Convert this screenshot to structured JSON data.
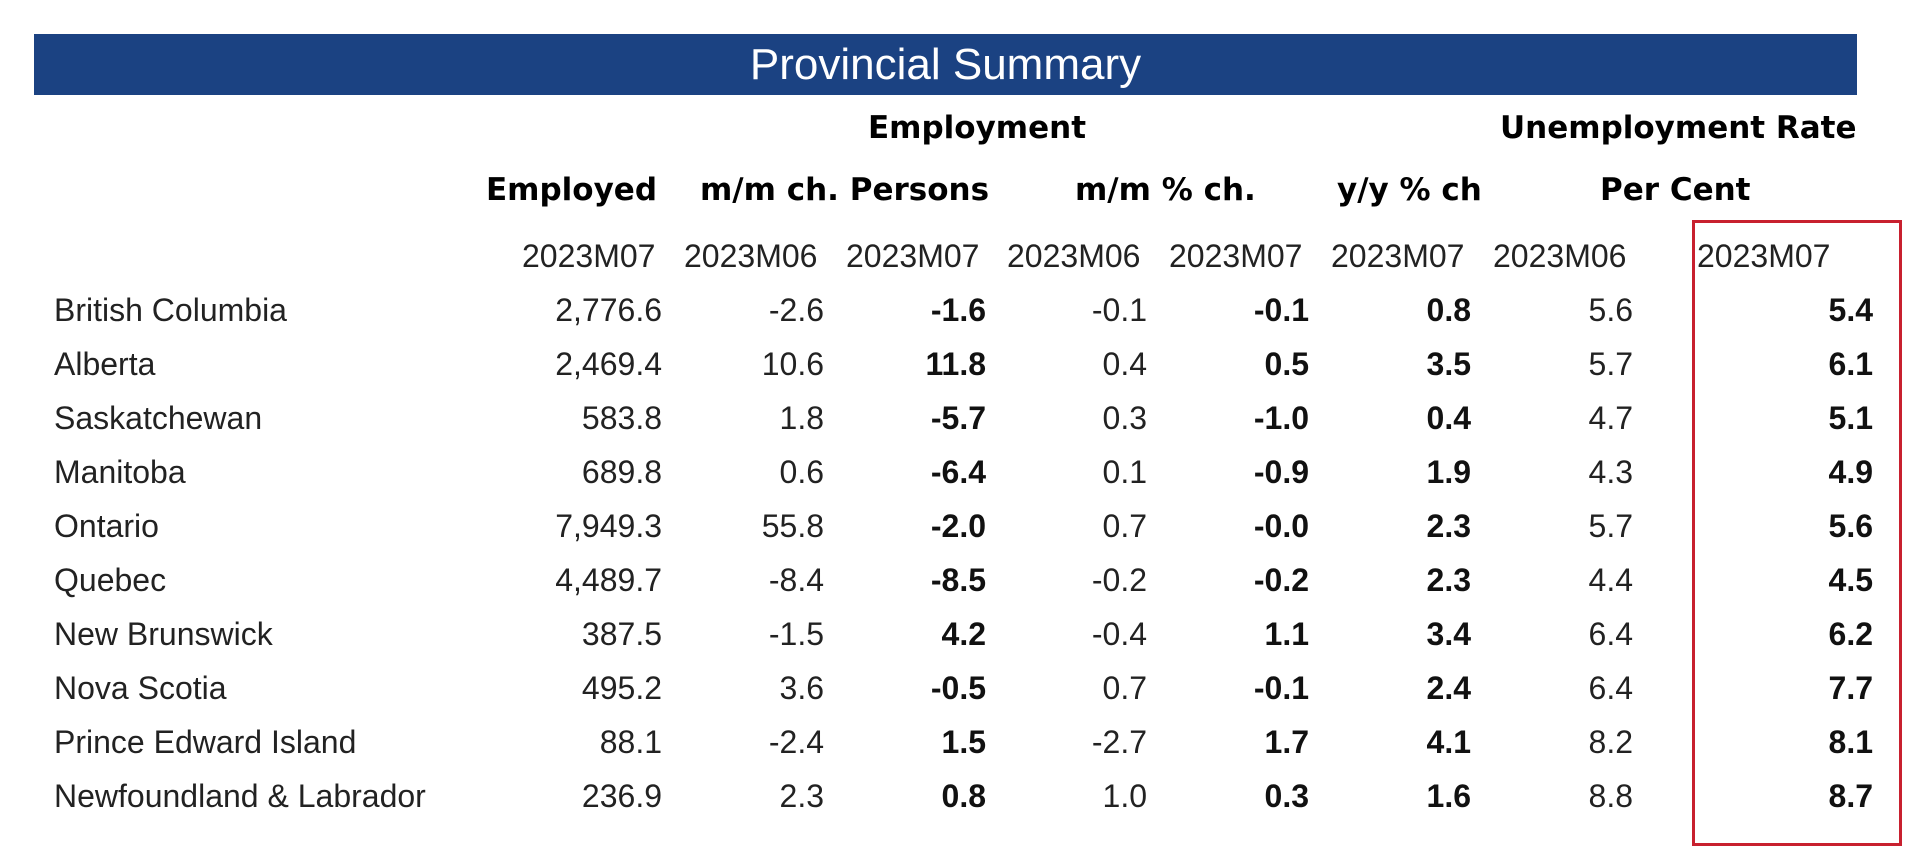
{
  "title": "Provincial Summary",
  "groups": {
    "employment": "Employment",
    "unemployment": "Unemployment Rate"
  },
  "columns": {
    "employed": "Employed",
    "mm_ch_persons": "m/m ch. Persons",
    "mm_pct_ch": "m/m % ch.",
    "yy_pct_ch": "y/y % ch",
    "per_cent": "Per Cent"
  },
  "periods": [
    "2023M07",
    "2023M06",
    "2023M07",
    "2023M06",
    "2023M07",
    "2023M07",
    "2023M06",
    "2023M07"
  ],
  "rows": [
    {
      "name": "British Columbia",
      "employed": "2,776.6",
      "mm_ch_prev": "-2.6",
      "mm_ch_cur": "-1.6",
      "mm_pct_prev": "-0.1",
      "mm_pct_cur": "-0.1",
      "yy_pct": "0.8",
      "rate_prev": "5.6",
      "rate_cur": "5.4"
    },
    {
      "name": "Alberta",
      "employed": "2,469.4",
      "mm_ch_prev": "10.6",
      "mm_ch_cur": "11.8",
      "mm_pct_prev": "0.4",
      "mm_pct_cur": "0.5",
      "yy_pct": "3.5",
      "rate_prev": "5.7",
      "rate_cur": "6.1"
    },
    {
      "name": "Saskatchewan",
      "employed": "583.8",
      "mm_ch_prev": "1.8",
      "mm_ch_cur": "-5.7",
      "mm_pct_prev": "0.3",
      "mm_pct_cur": "-1.0",
      "yy_pct": "0.4",
      "rate_prev": "4.7",
      "rate_cur": "5.1"
    },
    {
      "name": "Manitoba",
      "employed": "689.8",
      "mm_ch_prev": "0.6",
      "mm_ch_cur": "-6.4",
      "mm_pct_prev": "0.1",
      "mm_pct_cur": "-0.9",
      "yy_pct": "1.9",
      "rate_prev": "4.3",
      "rate_cur": "4.9"
    },
    {
      "name": "Ontario",
      "employed": "7,949.3",
      "mm_ch_prev": "55.8",
      "mm_ch_cur": "-2.0",
      "mm_pct_prev": "0.7",
      "mm_pct_cur": "-0.0",
      "yy_pct": "2.3",
      "rate_prev": "5.7",
      "rate_cur": "5.6"
    },
    {
      "name": "Quebec",
      "employed": "4,489.7",
      "mm_ch_prev": "-8.4",
      "mm_ch_cur": "-8.5",
      "mm_pct_prev": "-0.2",
      "mm_pct_cur": "-0.2",
      "yy_pct": "2.3",
      "rate_prev": "4.4",
      "rate_cur": "4.5"
    },
    {
      "name": "New Brunswick",
      "employed": "387.5",
      "mm_ch_prev": "-1.5",
      "mm_ch_cur": "4.2",
      "mm_pct_prev": "-0.4",
      "mm_pct_cur": "1.1",
      "yy_pct": "3.4",
      "rate_prev": "6.4",
      "rate_cur": "6.2"
    },
    {
      "name": "Nova Scotia",
      "employed": "495.2",
      "mm_ch_prev": "3.6",
      "mm_ch_cur": "-0.5",
      "mm_pct_prev": "0.7",
      "mm_pct_cur": "-0.1",
      "yy_pct": "2.4",
      "rate_prev": "6.4",
      "rate_cur": "7.7"
    },
    {
      "name": "Prince Edward Island",
      "employed": "88.1",
      "mm_ch_prev": "-2.4",
      "mm_ch_cur": "1.5",
      "mm_pct_prev": "-2.7",
      "mm_pct_cur": "1.7",
      "yy_pct": "4.1",
      "rate_prev": "8.2",
      "rate_cur": "8.1"
    },
    {
      "name": "Newfoundland & Labrador",
      "employed": "236.9",
      "mm_ch_prev": "2.3",
      "mm_ch_cur": "0.8",
      "mm_pct_prev": "1.0",
      "mm_pct_cur": "0.3",
      "yy_pct": "1.6",
      "rate_prev": "8.8",
      "rate_cur": "8.7"
    }
  ],
  "colors": {
    "banner": "#1b4282",
    "highlight_border": "#c8202f"
  }
}
